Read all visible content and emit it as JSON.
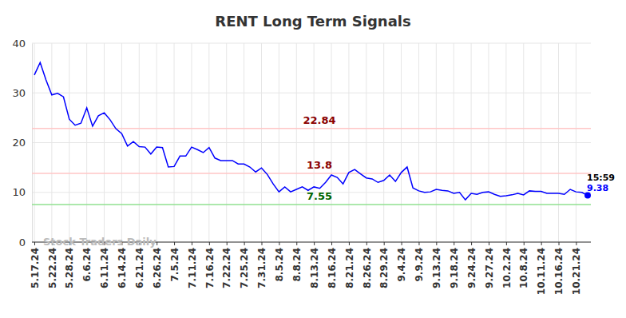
{
  "chart_data": {
    "type": "line",
    "title": "RENT Long Term Signals",
    "categories": [
      "5.17.24",
      null,
      null,
      "5.22.24",
      null,
      null,
      "5.28.24",
      null,
      null,
      "6.6.24",
      null,
      null,
      "6.11.24",
      null,
      null,
      "6.14.24",
      null,
      null,
      "6.21.24",
      null,
      null,
      "6.26.24",
      null,
      null,
      "7.5.24",
      null,
      null,
      "7.11.24",
      null,
      null,
      "7.16.24",
      null,
      null,
      "7.22.24",
      null,
      null,
      "7.25.24",
      null,
      null,
      "7.31.24",
      null,
      null,
      "8.5.24",
      null,
      null,
      "8.8.24",
      null,
      null,
      "8.13.24",
      null,
      null,
      "8.16.24",
      null,
      null,
      "8.21.24",
      null,
      null,
      "8.26.24",
      null,
      null,
      "8.29.24",
      null,
      null,
      "9.4.24",
      null,
      null,
      "9.9.24",
      null,
      null,
      "9.13.24",
      null,
      null,
      "9.18.24",
      null,
      null,
      "9.24.24",
      null,
      null,
      "9.27.24",
      null,
      null,
      "10.2.24",
      null,
      null,
      "10.8.24",
      null,
      null,
      "10.11.24",
      null,
      null,
      "10.16.24",
      null,
      null,
      "10.21.24",
      null,
      null
    ],
    "series": [
      {
        "name": "RENT",
        "color": "#0000ff",
        "values": [
          33.6,
          36.1,
          32.6,
          29.6,
          29.9,
          29.2,
          24.7,
          23.5,
          23.9,
          27.0,
          23.3,
          25.4,
          26.0,
          24.6,
          22.8,
          21.8,
          19.3,
          20.2,
          19.2,
          19.1,
          17.7,
          19.1,
          19.0,
          15.1,
          15.2,
          17.3,
          17.3,
          19.1,
          18.6,
          18.0,
          19.0,
          16.9,
          16.4,
          16.4,
          16.4,
          15.7,
          15.7,
          15.1,
          14.1,
          14.9,
          13.6,
          11.7,
          10.1,
          11.1,
          10.1,
          10.6,
          11.1,
          10.4,
          11.1,
          10.8,
          12.0,
          13.5,
          13.0,
          11.7,
          14.0,
          14.6,
          13.7,
          12.9,
          12.7,
          12.0,
          12.4,
          13.5,
          12.2,
          14.0,
          15.1,
          10.9,
          10.3,
          10.0,
          10.1,
          10.6,
          10.4,
          10.3,
          9.8,
          10.0,
          8.5,
          9.8,
          9.6,
          10.0,
          10.1,
          9.6,
          9.2,
          9.3,
          9.5,
          9.8,
          9.5,
          10.3,
          10.2,
          10.2,
          9.8,
          9.8,
          9.8,
          9.6,
          10.6,
          10.1,
          10.0,
          9.38
        ]
      }
    ],
    "ylim": [
      0,
      40
    ],
    "yticks": [
      0,
      10,
      20,
      30,
      40
    ],
    "grid": true,
    "reference_lines": [
      {
        "value": 22.84,
        "color": "#ffc6c6",
        "label_color": "#8b0000"
      },
      {
        "value": 13.8,
        "color": "#ffc6c6",
        "label_color": "#8b0000"
      },
      {
        "value": 7.55,
        "color": "#90e090",
        "label_color": "#006400"
      }
    ],
    "annotations": [
      {
        "text": "15:59"
      }
    ],
    "watermark": "Stock Traders Daily"
  }
}
